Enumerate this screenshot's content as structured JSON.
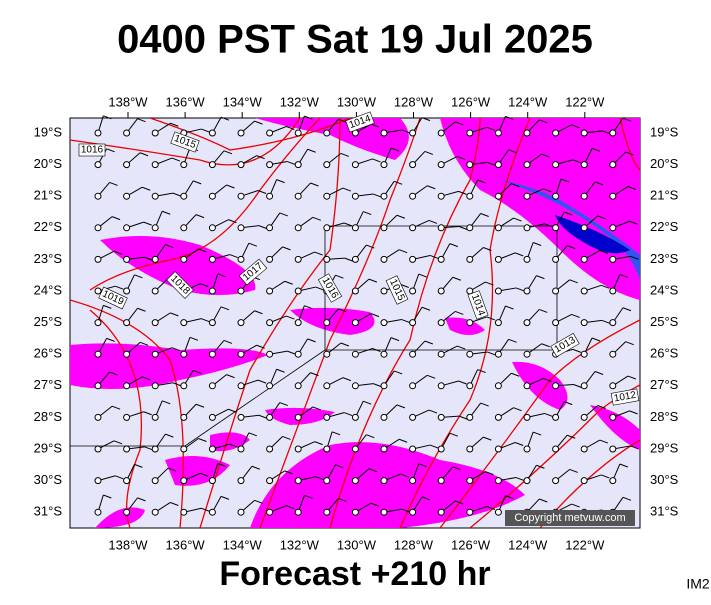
{
  "title": "0400 PST Sat 19 Jul 2025",
  "longitudes": [
    "138°W",
    "136°W",
    "134°W",
    "132°W",
    "130°W",
    "128°W",
    "126°W",
    "124°W",
    "122°W"
  ],
  "latitudes": [
    "19°S",
    "20°S",
    "21°S",
    "22°S",
    "23°S",
    "24°S",
    "25°S",
    "26°S",
    "27°S",
    "28°S",
    "29°S",
    "30°S",
    "31°S"
  ],
  "isobar_labels": [
    "1016",
    "1015",
    "1014",
    "1017",
    "1018",
    "1019",
    "1016",
    "1015",
    "1014",
    "1013",
    "1012"
  ],
  "copyright": "Copyright metvuw.com",
  "footer": "Forecast +210 hr",
  "image_id": "IM2"
}
